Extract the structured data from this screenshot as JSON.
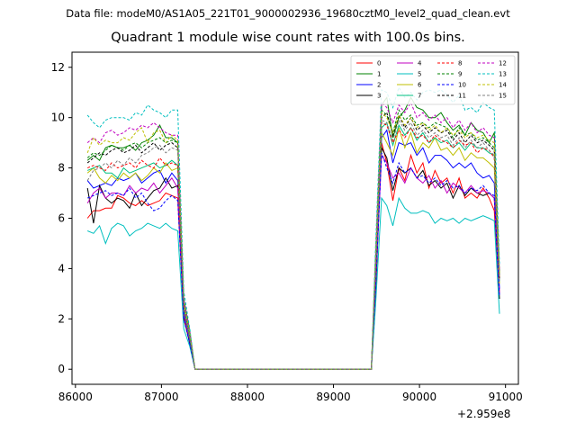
{
  "suptitle": "Data file: modeM0/AS1A05_221T01_9000002936_19680cztM0_level2_quad_clean.evt",
  "title": "Quadrant 1 module wise count rates with 100.0s bins.",
  "chart_data": {
    "type": "line",
    "title": "Quadrant 1 module wise count rates with 100.0s bins.",
    "x_offset_label": "+2.959e8",
    "xlim": [
      85960,
      91150
    ],
    "ylim": [
      -0.6,
      12.6
    ],
    "xticks": [
      86000,
      87000,
      88000,
      89000,
      90000,
      91000
    ],
    "xtick_labels": [
      "86000",
      "87000",
      "88000",
      "89000",
      "90000",
      "91000"
    ],
    "yticks": [
      0,
      2,
      4,
      6,
      8,
      10,
      12
    ],
    "ytick_labels": [
      "0",
      "2",
      "4",
      "6",
      "8",
      "10",
      "12"
    ],
    "grid": false,
    "legend_position": "top-right",
    "x": [
      86140,
      86210,
      86280,
      86350,
      86420,
      86490,
      86560,
      86630,
      86700,
      86770,
      86840,
      86910,
      86980,
      87050,
      87120,
      87190,
      87260,
      87330,
      87390,
      87430,
      89440,
      89490,
      89560,
      89620,
      89690,
      89760,
      89830,
      89900,
      89970,
      90040,
      90110,
      90180,
      90250,
      90320,
      90390,
      90460,
      90530,
      90600,
      90670,
      90740,
      90810,
      90870,
      90930
    ],
    "series": [
      {
        "name": "0",
        "color": "#ff0000",
        "style": "solid",
        "values": [
          6.0,
          6.3,
          6.3,
          6.4,
          6.4,
          6.9,
          6.8,
          6.6,
          6.5,
          6.7,
          6.5,
          6.6,
          6.7,
          7.0,
          6.9,
          6.8,
          2.0,
          1.1,
          0.0,
          0.0,
          0.0,
          3.0,
          9.0,
          8.2,
          6.7,
          8.0,
          7.5,
          8.5,
          7.8,
          8.2,
          7.2,
          7.9,
          7.4,
          7.6,
          7.0,
          7.6,
          6.8,
          7.0,
          6.8,
          7.2,
          6.8,
          6.3,
          3.0
        ]
      },
      {
        "name": "1",
        "color": "#008000",
        "style": "solid",
        "values": [
          8.3,
          8.5,
          8.3,
          8.8,
          8.9,
          8.8,
          8.8,
          8.9,
          8.7,
          9.0,
          9.1,
          9.3,
          9.7,
          9.2,
          9.2,
          9.0,
          2.8,
          1.5,
          0.0,
          0.0,
          0.0,
          4.5,
          10.5,
          10.8,
          9.2,
          10.0,
          10.3,
          10.8,
          10.4,
          10.3,
          10.0,
          10.0,
          10.2,
          9.8,
          9.5,
          9.7,
          9.3,
          9.8,
          9.5,
          9.4,
          9.0,
          9.4,
          3.8
        ]
      },
      {
        "name": "2",
        "color": "#0000ff",
        "style": "solid",
        "values": [
          7.5,
          7.2,
          7.3,
          7.4,
          7.3,
          7.6,
          7.5,
          7.6,
          7.8,
          7.4,
          7.6,
          7.8,
          7.9,
          7.4,
          7.8,
          7.5,
          2.3,
          1.2,
          0.0,
          0.0,
          0.0,
          3.6,
          9.2,
          9.5,
          8.2,
          9.0,
          8.9,
          9.0,
          8.5,
          8.8,
          8.2,
          8.5,
          8.5,
          8.3,
          8.0,
          8.2,
          8.0,
          8.2,
          7.8,
          7.6,
          7.7,
          7.4,
          3.2
        ]
      },
      {
        "name": "3",
        "color": "#000000",
        "style": "solid",
        "values": [
          7.2,
          5.8,
          7.3,
          6.8,
          6.6,
          6.8,
          6.7,
          6.4,
          7.0,
          6.5,
          6.8,
          7.1,
          7.2,
          7.6,
          7.2,
          7.3,
          2.1,
          1.0,
          0.0,
          0.0,
          0.0,
          3.2,
          8.8,
          8.4,
          7.1,
          8.0,
          7.8,
          8.0,
          7.6,
          7.9,
          7.3,
          7.5,
          7.2,
          7.4,
          6.8,
          7.3,
          6.9,
          7.2,
          7.0,
          6.9,
          7.0,
          6.8,
          2.8
        ]
      },
      {
        "name": "4",
        "color": "#c000c0",
        "style": "solid",
        "values": [
          6.6,
          7.0,
          7.2,
          6.8,
          7.0,
          7.0,
          6.9,
          7.3,
          7.0,
          7.2,
          7.1,
          7.4,
          7.0,
          7.3,
          7.6,
          7.2,
          2.2,
          1.1,
          0.0,
          0.0,
          0.0,
          3.4,
          8.5,
          8.2,
          7.6,
          7.8,
          7.4,
          8.0,
          7.6,
          7.4,
          7.7,
          7.2,
          7.5,
          7.0,
          7.4,
          7.2,
          7.0,
          7.3,
          7.0,
          7.1,
          7.0,
          6.8,
          3.0
        ]
      },
      {
        "name": "5",
        "color": "#00bfbf",
        "style": "solid",
        "values": [
          5.5,
          5.4,
          5.7,
          5.0,
          5.6,
          5.8,
          5.7,
          5.3,
          5.5,
          5.6,
          5.8,
          5.7,
          5.6,
          5.8,
          5.6,
          5.5,
          1.6,
          0.9,
          0.0,
          0.0,
          0.0,
          2.6,
          6.8,
          6.5,
          5.7,
          6.8,
          6.4,
          6.2,
          6.2,
          6.3,
          6.2,
          5.8,
          6.0,
          5.9,
          6.0,
          5.8,
          6.0,
          5.9,
          6.0,
          6.1,
          6.0,
          5.9,
          2.2
        ]
      },
      {
        "name": "6",
        "color": "#bfbf00",
        "style": "solid",
        "values": [
          7.8,
          8.0,
          7.6,
          7.4,
          7.7,
          7.5,
          7.8,
          7.6,
          7.8,
          7.5,
          7.7,
          8.0,
          7.8,
          8.2,
          7.9,
          8.0,
          2.5,
          1.3,
          0.0,
          0.0,
          0.0,
          3.9,
          9.4,
          9.0,
          8.5,
          9.6,
          8.8,
          9.4,
          8.6,
          9.0,
          8.8,
          9.2,
          8.7,
          8.8,
          8.5,
          8.8,
          8.3,
          8.6,
          8.4,
          8.4,
          8.2,
          8.0,
          3.4
        ]
      },
      {
        "name": "7",
        "color": "#00c080",
        "style": "solid",
        "values": [
          7.9,
          8.0,
          8.1,
          7.8,
          7.8,
          7.6,
          8.0,
          7.8,
          7.9,
          8.0,
          8.1,
          8.2,
          8.0,
          8.1,
          8.3,
          8.1,
          2.4,
          1.2,
          0.0,
          0.0,
          0.0,
          3.8,
          9.6,
          9.8,
          8.9,
          9.7,
          9.3,
          9.6,
          9.1,
          9.4,
          9.0,
          9.2,
          9.0,
          9.1,
          8.8,
          9.0,
          8.7,
          9.0,
          8.8,
          8.8,
          8.6,
          8.5,
          3.5
        ]
      },
      {
        "name": "8",
        "color": "#ff0000",
        "style": "dashed",
        "values": [
          8.0,
          8.1,
          8.0,
          7.9,
          8.2,
          8.0,
          8.1,
          8.2,
          8.0,
          8.3,
          8.1,
          8.0,
          8.4,
          8.1,
          8.2,
          8.1,
          2.5,
          1.3,
          0.0,
          0.0,
          0.0,
          4.0,
          9.8,
          9.7,
          9.0,
          9.5,
          9.2,
          9.6,
          9.2,
          9.3,
          9.0,
          9.3,
          9.1,
          9.0,
          8.8,
          9.1,
          8.9,
          9.0,
          8.6,
          8.8,
          8.7,
          8.4,
          3.6
        ]
      },
      {
        "name": "9",
        "color": "#008000",
        "style": "dashed",
        "values": [
          8.4,
          8.6,
          8.5,
          8.7,
          8.9,
          8.8,
          8.7,
          8.9,
          9.0,
          8.8,
          9.0,
          9.1,
          9.2,
          9.0,
          9.1,
          9.0,
          2.7,
          1.4,
          0.0,
          0.0,
          0.0,
          4.4,
          10.3,
          10.1,
          9.4,
          10.3,
          9.9,
          10.1,
          9.7,
          9.8,
          9.6,
          9.8,
          9.7,
          9.6,
          9.2,
          9.6,
          9.3,
          9.4,
          9.1,
          9.2,
          9.0,
          8.8,
          3.7
        ]
      },
      {
        "name": "10",
        "color": "#0000ff",
        "style": "dashed",
        "values": [
          6.8,
          6.9,
          7.0,
          7.1,
          6.9,
          7.0,
          6.9,
          7.2,
          6.8,
          7.0,
          6.6,
          6.3,
          6.4,
          6.7,
          6.9,
          6.7,
          2.0,
          1.0,
          0.0,
          0.0,
          0.0,
          3.3,
          8.6,
          8.0,
          7.4,
          8.2,
          7.8,
          8.0,
          7.6,
          7.7,
          7.4,
          7.6,
          7.3,
          7.5,
          7.2,
          7.3,
          7.0,
          7.2,
          7.1,
          7.3,
          7.0,
          6.9,
          2.9
        ]
      },
      {
        "name": "11",
        "color": "#000000",
        "style": "dashed",
        "values": [
          8.2,
          8.4,
          8.6,
          8.5,
          8.7,
          8.8,
          8.6,
          8.7,
          8.9,
          8.6,
          8.8,
          9.0,
          8.7,
          8.9,
          9.0,
          8.8,
          2.6,
          1.3,
          0.0,
          0.0,
          0.0,
          4.2,
          10.0,
          10.2,
          9.3,
          10.1,
          9.6,
          10.0,
          9.5,
          9.7,
          9.4,
          9.6,
          9.4,
          9.5,
          9.1,
          9.4,
          9.0,
          9.3,
          9.0,
          9.1,
          8.9,
          8.7,
          3.6
        ]
      },
      {
        "name": "12",
        "color": "#c000c0",
        "style": "dashed",
        "values": [
          9.0,
          9.2,
          9.0,
          9.4,
          9.5,
          9.3,
          9.4,
          9.6,
          9.5,
          9.7,
          9.6,
          9.8,
          9.6,
          9.4,
          9.3,
          9.3,
          2.8,
          1.5,
          0.0,
          0.0,
          0.0,
          4.6,
          10.6,
          10.4,
          9.8,
          10.5,
          10.2,
          10.6,
          10.0,
          10.2,
          9.9,
          10.1,
          9.8,
          10.0,
          9.6,
          9.9,
          9.5,
          9.8,
          9.4,
          9.6,
          9.3,
          9.2,
          3.9
        ]
      },
      {
        "name": "13",
        "color": "#00bfbf",
        "style": "dashed",
        "values": [
          10.1,
          9.8,
          9.6,
          9.9,
          10.0,
          10.0,
          10.0,
          9.9,
          10.2,
          10.1,
          10.5,
          10.3,
          10.2,
          10.0,
          10.3,
          10.3,
          3.1,
          1.6,
          0.0,
          0.0,
          0.0,
          5.0,
          11.1,
          11.0,
          10.4,
          11.2,
          10.8,
          11.0,
          10.7,
          11.0,
          11.1,
          11.0,
          11.1,
          10.9,
          10.6,
          10.9,
          10.3,
          10.4,
          10.2,
          10.6,
          10.4,
          10.3,
          4.2
        ]
      },
      {
        "name": "14",
        "color": "#bfbf00",
        "style": "dashed",
        "values": [
          8.6,
          9.2,
          8.9,
          9.1,
          9.0,
          9.0,
          9.2,
          9.1,
          9.4,
          9.6,
          9.0,
          9.4,
          9.5,
          9.0,
          9.3,
          9.1,
          2.7,
          1.4,
          0.0,
          0.0,
          0.0,
          4.4,
          10.2,
          10.0,
          9.4,
          10.1,
          9.7,
          10.0,
          9.6,
          9.8,
          9.5,
          9.7,
          9.4,
          9.6,
          9.3,
          9.5,
          9.2,
          9.4,
          9.2,
          9.3,
          9.1,
          9.0,
          3.7
        ]
      },
      {
        "name": "15",
        "color": "#808080",
        "style": "dashed",
        "values": [
          7.5,
          7.9,
          8.0,
          8.2,
          8.0,
          8.3,
          8.1,
          8.4,
          8.2,
          8.5,
          8.6,
          8.8,
          8.9,
          8.6,
          8.8,
          8.7,
          2.6,
          1.3,
          0.0,
          0.0,
          0.0,
          4.0,
          9.9,
          9.8,
          9.1,
          9.9,
          9.5,
          9.8,
          9.3,
          9.5,
          9.2,
          9.4,
          9.2,
          9.3,
          8.9,
          9.2,
          8.8,
          9.1,
          8.8,
          9.0,
          8.7,
          8.5,
          3.5
        ]
      }
    ]
  }
}
